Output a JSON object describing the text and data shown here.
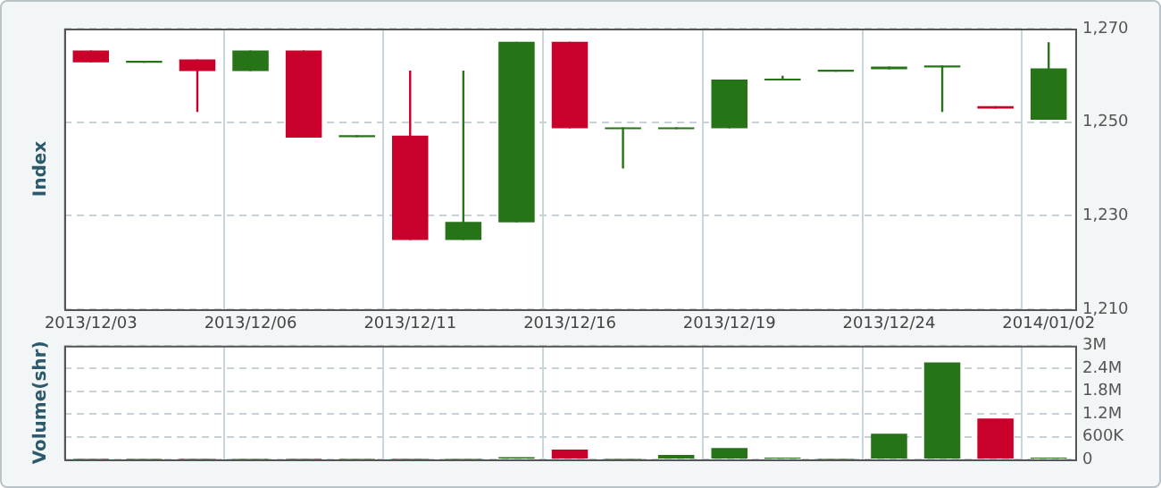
{
  "chart_data": [
    {
      "type": "candlestick",
      "ylabel": "Index",
      "categories": [
        "2013/12/03",
        null,
        null,
        "2013/12/06",
        null,
        null,
        "2013/12/11",
        null,
        null,
        "2013/12/16",
        null,
        null,
        "2013/12/19",
        null,
        null,
        "2013/12/24",
        null,
        null,
        "2014/01/02"
      ],
      "ohlc": [
        [
          1265.3,
          1265.3,
          1262.8,
          1262.8
        ],
        [
          1262.7,
          1263.1,
          1262.7,
          1263.1
        ],
        [
          1263.4,
          1263.4,
          1252.2,
          1260.9
        ],
        [
          1260.9,
          1265.3,
          1260.9,
          1265.3
        ],
        [
          1265.3,
          1265.3,
          1246.7,
          1246.7
        ],
        [
          1246.8,
          1247.2,
          1246.8,
          1247.2
        ],
        [
          1247.1,
          1261.0,
          1224.8,
          1224.8
        ],
        [
          1224.8,
          1261.0,
          1224.8,
          1228.7
        ],
        [
          1228.6,
          1267.2,
          1228.6,
          1267.2
        ],
        [
          1267.2,
          1267.2,
          1248.7,
          1248.7
        ],
        [
          1248.5,
          1248.9,
          1240.1,
          1248.9
        ],
        [
          1248.5,
          1248.9,
          1248.5,
          1248.9
        ],
        [
          1248.7,
          1259.1,
          1248.7,
          1259.1
        ],
        [
          1258.9,
          1259.9,
          1258.9,
          1259.3
        ],
        [
          1260.8,
          1261.2,
          1260.8,
          1261.2
        ],
        [
          1261.3,
          1261.9,
          1261.3,
          1261.9
        ],
        [
          1261.7,
          1262.1,
          1252.2,
          1262.1
        ],
        [
          1253.4,
          1253.4,
          1252.9,
          1252.9
        ],
        [
          1250.5,
          1267.1,
          1250.5,
          1261.5
        ]
      ],
      "colors": [
        "#c8002a",
        "#267318",
        "#c8002a",
        "#267318",
        "#c8002a",
        "#267318",
        "#c8002a",
        "#267318",
        "#267318",
        "#c8002a",
        "#267318",
        "#267318",
        "#267318",
        "#267318",
        "#267318",
        "#267318",
        "#267318",
        "#c8002a",
        "#267318"
      ],
      "ylim": [
        1210,
        1270
      ],
      "yticks": [
        {
          "value": 1210,
          "label": "1,210"
        },
        {
          "value": 1230,
          "label": "1,230"
        },
        {
          "value": 1250,
          "label": "1,250"
        },
        {
          "value": 1270,
          "label": "1,270"
        }
      ],
      "grid": true
    },
    {
      "type": "bar",
      "ylabel": "Volume(shr)",
      "categories": [
        "2013/12/03",
        null,
        null,
        "2013/12/06",
        null,
        null,
        "2013/12/11",
        null,
        null,
        "2013/12/16",
        null,
        null,
        "2013/12/19",
        null,
        null,
        "2013/12/24",
        null,
        null,
        "2014/01/02"
      ],
      "values": [
        10000,
        10000,
        10000,
        10000,
        10000,
        10000,
        10000,
        10000,
        60000,
        260000,
        10000,
        120000,
        300000,
        50000,
        10000,
        680000,
        2560000,
        1080000,
        50000
      ],
      "colors": [
        "#c8002a",
        "#267318",
        "#c8002a",
        "#267318",
        "#c8002a",
        "#267318",
        "#c8002a",
        "#267318",
        "#267318",
        "#c8002a",
        "#267318",
        "#267318",
        "#267318",
        "#267318",
        "#267318",
        "#267318",
        "#267318",
        "#c8002a",
        "#267318"
      ],
      "ylim": [
        0,
        3000000
      ],
      "yticks": [
        0,
        {
          "value": 600000,
          "label": "600K"
        },
        {
          "value": 1200000,
          "label": "1.2M"
        },
        {
          "value": 1800000,
          "label": "1.8M"
        },
        {
          "value": 2400000,
          "label": "2.4M"
        },
        {
          "value": 3000000,
          "label": "3M"
        }
      ],
      "tick_labels": "y",
      "grid": true
    }
  ]
}
